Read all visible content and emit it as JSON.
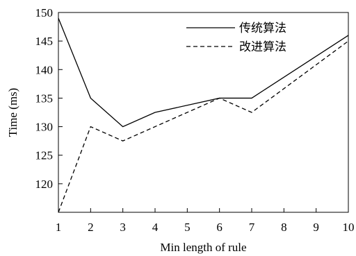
{
  "chart_data": {
    "type": "line",
    "title": "",
    "xlabel": "Min length of rule",
    "ylabel": "Time (ms)",
    "x": [
      1,
      2,
      3,
      4,
      5,
      6,
      7,
      8,
      9,
      10
    ],
    "xlim": [
      1,
      10
    ],
    "ylim": [
      115,
      150
    ],
    "yticks": [
      120,
      125,
      130,
      135,
      140,
      145,
      150
    ],
    "xticks": [
      1,
      2,
      3,
      4,
      5,
      6,
      7,
      8,
      9,
      10
    ],
    "grid": false,
    "legend_position": "top-right",
    "series": [
      {
        "name": "传统算法",
        "line_style": "solid",
        "color": "#000000",
        "points": [
          [
            1,
            149
          ],
          [
            2,
            135
          ],
          [
            3,
            130
          ],
          [
            4,
            132.5
          ],
          [
            6,
            135
          ],
          [
            7,
            135
          ],
          [
            10,
            146
          ]
        ]
      },
      {
        "name": "改进算法",
        "line_style": "dashed",
        "color": "#000000",
        "points": [
          [
            1,
            115
          ],
          [
            2,
            130
          ],
          [
            3,
            127.5
          ],
          [
            6,
            135
          ],
          [
            7,
            132.5
          ],
          [
            10,
            145
          ]
        ]
      }
    ]
  }
}
